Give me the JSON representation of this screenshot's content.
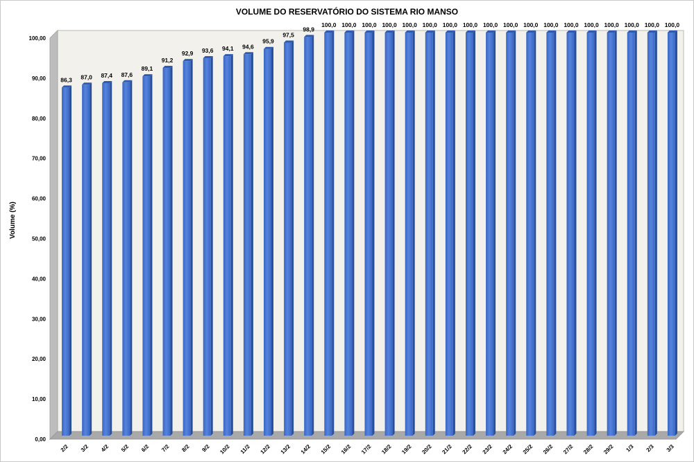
{
  "chart_data": {
    "type": "bar",
    "title": "VOLUME DO RESERVATÓRIO DO SISTEMA RIO MANSO",
    "ylabel": "Volume (%)",
    "xlabel": "",
    "ylim": [
      0,
      100
    ],
    "y_ticks": [
      "0,00",
      "10,00",
      "20,00",
      "30,00",
      "40,00",
      "50,00",
      "60,00",
      "70,00",
      "80,00",
      "90,00",
      "100,00"
    ],
    "categories": [
      "2/2",
      "3/2",
      "4/2",
      "5/2",
      "6/2",
      "7/2",
      "8/2",
      "9/2",
      "10/2",
      "11/2",
      "12/2",
      "13/2",
      "14/2",
      "15/2",
      "16/2",
      "17/2",
      "18/2",
      "19/2",
      "20/2",
      "21/2",
      "22/2",
      "23/2",
      "24/2",
      "25/2",
      "26/2",
      "27/2",
      "28/2",
      "29/2",
      "1/3",
      "2/3",
      "3/3"
    ],
    "values": [
      86.3,
      87.0,
      87.4,
      87.6,
      89.1,
      91.2,
      92.9,
      93.6,
      94.1,
      94.6,
      95.9,
      97.5,
      98.9,
      100.0,
      100.0,
      100.0,
      100.0,
      100.0,
      100.0,
      100.0,
      100.0,
      100.0,
      100.0,
      100.0,
      100.0,
      100.0,
      100.0,
      100.0,
      100.0,
      100.0,
      100.0
    ],
    "value_labels": [
      "86,3",
      "87,0",
      "87,4",
      "87,6",
      "89,1",
      "91,2",
      "92,9",
      "93,6",
      "94,1",
      "94,6",
      "95,9",
      "97,5",
      "98,9",
      "100,0",
      "100,0",
      "100,0",
      "100,0",
      "100,0",
      "100,0",
      "100,0",
      "100,0",
      "100,0",
      "100,0",
      "100,0",
      "100,0",
      "100,0",
      "100,0",
      "100,0",
      "100,0",
      "100,0",
      "100,0"
    ],
    "grid": false,
    "legend": "none",
    "bar_color": "#4472C4",
    "bar_side_color": "#2A4F9A",
    "wall_color": "#F2F1EC"
  }
}
